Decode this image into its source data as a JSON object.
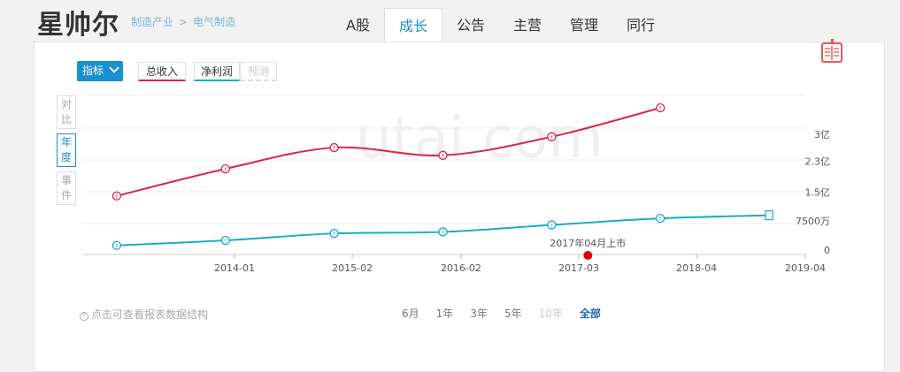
{
  "header": {
    "company": "星帅尔",
    "breadcrumb": [
      "制造产业",
      "电气制造"
    ],
    "breadcrumb_sep": ">",
    "tabs": [
      "A股",
      "成长",
      "公告",
      "主营",
      "管理",
      "同行"
    ],
    "active_tab": 1
  },
  "toolbar": {
    "indicator_label": "指标",
    "metrics": [
      "总收入",
      "净利润",
      "预测"
    ]
  },
  "side_buttons": [
    "对比",
    "年度",
    "事件"
  ],
  "watermark": "utai.com",
  "colors": {
    "revenue": "#d9264a",
    "profit": "#1aabc8",
    "accent": "#1a8fd1",
    "event": "#e00000"
  },
  "chart_data": {
    "type": "line",
    "x_ticks": [
      "2014-01",
      "2015-02",
      "2016-02",
      "2017-03",
      "2018-04",
      "2019-04"
    ],
    "y_ticks": [
      "0",
      "7500万",
      "1.5亿",
      "2.3亿",
      "3亿"
    ],
    "ylim": [
      0,
      400000000
    ],
    "series": [
      {
        "name": "总收入",
        "color": "#d9264a",
        "x": [
          "2012-12",
          "2013-12",
          "2014-12",
          "2015-12",
          "2016-12",
          "2017-12"
        ],
        "values": [
          140000000,
          210000000,
          265000000,
          245000000,
          293000000,
          368000000
        ]
      },
      {
        "name": "净利润",
        "color": "#1aabc8",
        "x": [
          "2012-12",
          "2013-12",
          "2014-12",
          "2015-12",
          "2016-12",
          "2017-12",
          "2018-12"
        ],
        "values": [
          12000000,
          25000000,
          43000000,
          47000000,
          65000000,
          82000000,
          90000000
        ]
      }
    ],
    "event": {
      "date": "2017-04",
      "label": "2017年04月上市"
    },
    "grid": true
  },
  "footer": {
    "hint": "点击可查看报表数据结构",
    "ranges": [
      "6月",
      "1年",
      "3年",
      "5年",
      "10年",
      "全部"
    ],
    "disabled_range": 4,
    "active_range": 5
  }
}
